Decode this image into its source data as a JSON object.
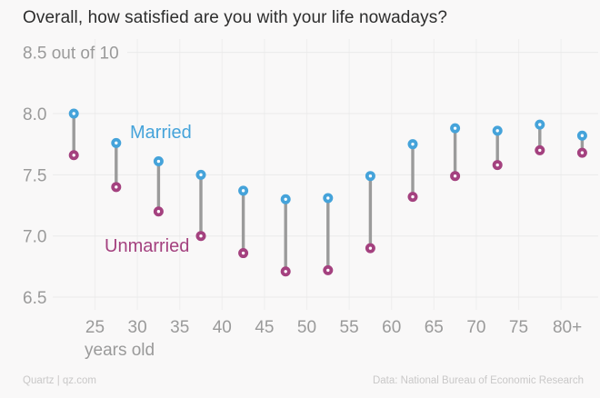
{
  "title": "Overall, how satisfied are you with your life nowadays?",
  "footer": {
    "left": "Quartz | qz.com",
    "right": "Data: National Bureau of Economic Research"
  },
  "chart_data": {
    "type": "dumbbell",
    "title": "Overall, how satisfied are you with your life nowadays?",
    "x": [
      22.5,
      27.5,
      32.5,
      37.5,
      42.5,
      47.5,
      52.5,
      57.5,
      62.5,
      67.5,
      72.5,
      77.5,
      82.5
    ],
    "categories": [
      "25",
      "30",
      "35",
      "40",
      "45",
      "50",
      "55",
      "60",
      "65",
      "70",
      "75",
      "80+"
    ],
    "series": [
      {
        "name": "Married",
        "color": "#45a3da",
        "values": [
          8.0,
          7.76,
          7.61,
          7.5,
          7.37,
          7.3,
          7.31,
          7.49,
          7.75,
          7.88,
          7.86,
          7.91,
          7.82
        ]
      },
      {
        "name": "Unmarried",
        "color": "#a4417f",
        "values": [
          7.66,
          7.4,
          7.2,
          7.0,
          6.86,
          6.71,
          6.72,
          6.9,
          7.32,
          7.49,
          7.58,
          7.7,
          7.68
        ]
      }
    ],
    "y_axis": {
      "top_label": "8.5 out of 10",
      "ticks": [
        "8.0",
        "7.5",
        "7.0",
        "6.5"
      ],
      "ylim": [
        6.5,
        8.5
      ]
    },
    "x_axis": {
      "label": "years old",
      "tick_ages": [
        25,
        30,
        35,
        40,
        45,
        50,
        55,
        60,
        65,
        70,
        75,
        80
      ],
      "tick_labels": [
        "25",
        "30",
        "35",
        "40",
        "45",
        "50",
        "55",
        "60",
        "65",
        "70",
        "75",
        "80+"
      ]
    },
    "grid": true,
    "legend_position": "inline",
    "connector_color": "#9b9b9b",
    "grid_color_h": "#eaeaea",
    "grid_color_v": "#f0efef",
    "background": "#f9f8f8"
  }
}
